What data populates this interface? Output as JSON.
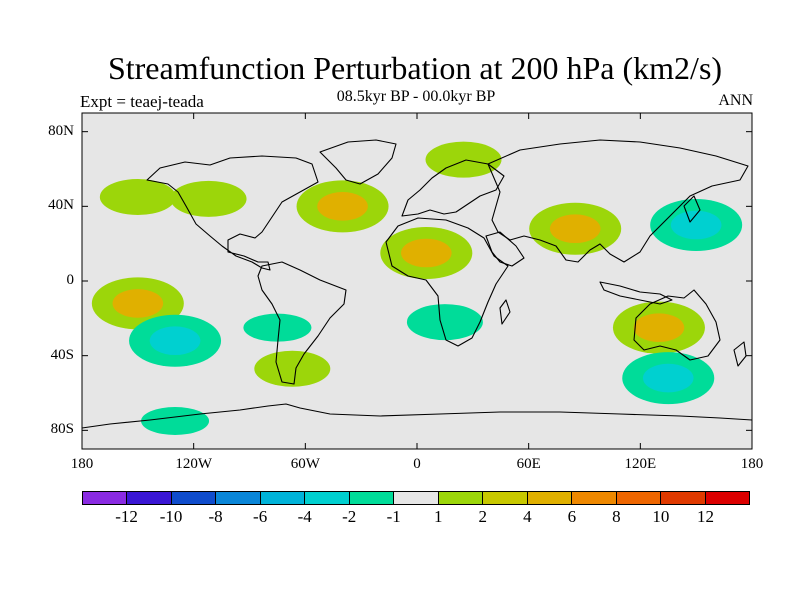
{
  "title": "Streamfunction Perturbation at 200 hPa (km2/s)",
  "left_label": "Expt = teaej-teada",
  "center_label": "08.5kyr BP - 00.0kyr BP",
  "right_label": "ANN",
  "map": {
    "projection": "cylindrical-equidistant",
    "lon_range": [
      -180,
      180
    ],
    "lat_range": [
      -90,
      90
    ],
    "background_color": "#e6e6e6",
    "coast_color": "#000000",
    "lat_ticks": [
      {
        "value": 80,
        "label": "80N"
      },
      {
        "value": 40,
        "label": "40N"
      },
      {
        "value": 0,
        "label": "0"
      },
      {
        "value": -40,
        "label": "40S"
      },
      {
        "value": -80,
        "label": "80S"
      }
    ],
    "lon_ticks": [
      {
        "value": -180,
        "label": "180"
      },
      {
        "value": -120,
        "label": "120W"
      },
      {
        "value": -60,
        "label": "60W"
      },
      {
        "value": 0,
        "label": "0"
      },
      {
        "value": 60,
        "label": "60E"
      },
      {
        "value": 120,
        "label": "120E"
      },
      {
        "value": 180,
        "label": "180"
      }
    ]
  },
  "colorbar": {
    "colors": [
      "#8a2be2",
      "#3a16d4",
      "#0f4ccc",
      "#0a86d8",
      "#00b3d9",
      "#00d0d0",
      "#00dc99",
      "#e6e6e6",
      "#9cd60a",
      "#c8c800",
      "#e0b000",
      "#ee8800",
      "#ee6600",
      "#e03a00",
      "#dc0000"
    ],
    "labels": [
      "-12",
      "-10",
      "-8",
      "-6",
      "-4",
      "-2",
      "-1",
      "1",
      "2",
      "4",
      "6",
      "8",
      "10",
      "12"
    ]
  },
  "anomaly_regions": [
    {
      "name": "north-pacific-positive",
      "lon": -150,
      "lat": 45,
      "value": 2
    },
    {
      "name": "western-north-america-positive",
      "lon": -112,
      "lat": 44,
      "value": 2
    },
    {
      "name": "north-atlantic-positive",
      "lon": -40,
      "lat": 40,
      "value": 4
    },
    {
      "name": "greenland-sea-positive",
      "lon": 25,
      "lat": 65,
      "value": 2
    },
    {
      "name": "north-africa-positive",
      "lon": 5,
      "lat": 15,
      "value": 4
    },
    {
      "name": "south-asia-positive",
      "lon": 85,
      "lat": 28,
      "value": 4
    },
    {
      "name": "south-pacific-positive",
      "lon": -150,
      "lat": -12,
      "value": 4
    },
    {
      "name": "south-america-negative",
      "lon": -75,
      "lat": -25,
      "value": -1
    },
    {
      "name": "south-pacific-negative",
      "lon": -130,
      "lat": -32,
      "value": -4
    },
    {
      "name": "southern-africa-negative",
      "lon": 15,
      "lat": -22,
      "value": -2
    },
    {
      "name": "australia-positive",
      "lon": 130,
      "lat": -25,
      "value": 4
    },
    {
      "name": "southern-ocean-negative",
      "lon": 135,
      "lat": -52,
      "value": -4
    },
    {
      "name": "northwest-pacific-negative",
      "lon": 150,
      "lat": 30,
      "value": -4
    },
    {
      "name": "south-atlantic-positive",
      "lon": -67,
      "lat": -47,
      "value": 2
    },
    {
      "name": "antarctic-coast-negative",
      "lon": -130,
      "lat": -75,
      "value": -1
    }
  ]
}
